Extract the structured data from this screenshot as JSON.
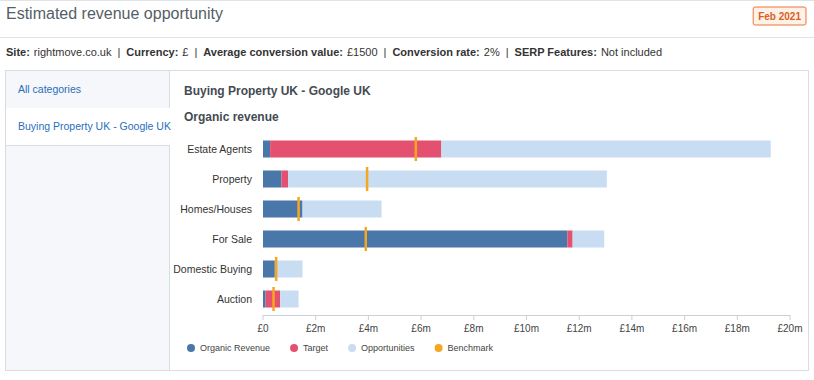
{
  "header": {
    "title": "Estimated revenue opportunity",
    "badge": "Feb 2021"
  },
  "info": {
    "separator": "|",
    "items": [
      {
        "label": "Site:",
        "value": "rightmove.co.uk"
      },
      {
        "label": "Currency:",
        "value": "£"
      },
      {
        "label": "Average conversion value:",
        "value": "£1500"
      },
      {
        "label": "Conversion rate:",
        "value": "2%"
      },
      {
        "label": "SERP Features:",
        "value": "Not included"
      }
    ]
  },
  "sidebar": {
    "items": [
      "All categories",
      "Buying Property UK - Google UK"
    ],
    "selected": 1
  },
  "chart_data": {
    "type": "bar",
    "orientation": "horizontal",
    "stacked": true,
    "title": "Buying Property UK - Google UK",
    "subtitle": "Organic revenue",
    "categories": [
      "Estate Agents",
      "Property",
      "Homes/Houses",
      "For Sale",
      "Domestic Buying",
      "Auction"
    ],
    "series": [
      {
        "name": "Organic Revenue",
        "color": "#4a77a9",
        "values": [
          270000,
          700000,
          1500000,
          11550000,
          450000,
          100000
        ]
      },
      {
        "name": "Target",
        "color": "#e4506f",
        "values": [
          6500000,
          250000,
          0,
          200000,
          0,
          550000
        ]
      },
      {
        "name": "Opportunities",
        "color": "#c9ddf2",
        "values": [
          12500000,
          12100000,
          3000000,
          1200000,
          1050000,
          700000
        ]
      },
      {
        "name": "Benchmark",
        "color": "#f5a623",
        "type": "scatter",
        "marker": "line",
        "values": [
          5800000,
          3950000,
          1350000,
          3900000,
          500000,
          400000
        ]
      }
    ],
    "xlim": [
      0,
      20000000
    ],
    "xticks": [
      {
        "value": 0,
        "label": "£0"
      },
      {
        "value": 2000000,
        "label": "£2m"
      },
      {
        "value": 4000000,
        "label": "£4m"
      },
      {
        "value": 6000000,
        "label": "£6m"
      },
      {
        "value": 8000000,
        "label": "£8m"
      },
      {
        "value": 10000000,
        "label": "£10m"
      },
      {
        "value": 12000000,
        "label": "£12m"
      },
      {
        "value": 14000000,
        "label": "£14m"
      },
      {
        "value": 16000000,
        "label": "£16m"
      },
      {
        "value": 18000000,
        "label": "£18m"
      },
      {
        "value": 20000000,
        "label": "£20m"
      }
    ],
    "grid": false,
    "legend": "bottom"
  }
}
